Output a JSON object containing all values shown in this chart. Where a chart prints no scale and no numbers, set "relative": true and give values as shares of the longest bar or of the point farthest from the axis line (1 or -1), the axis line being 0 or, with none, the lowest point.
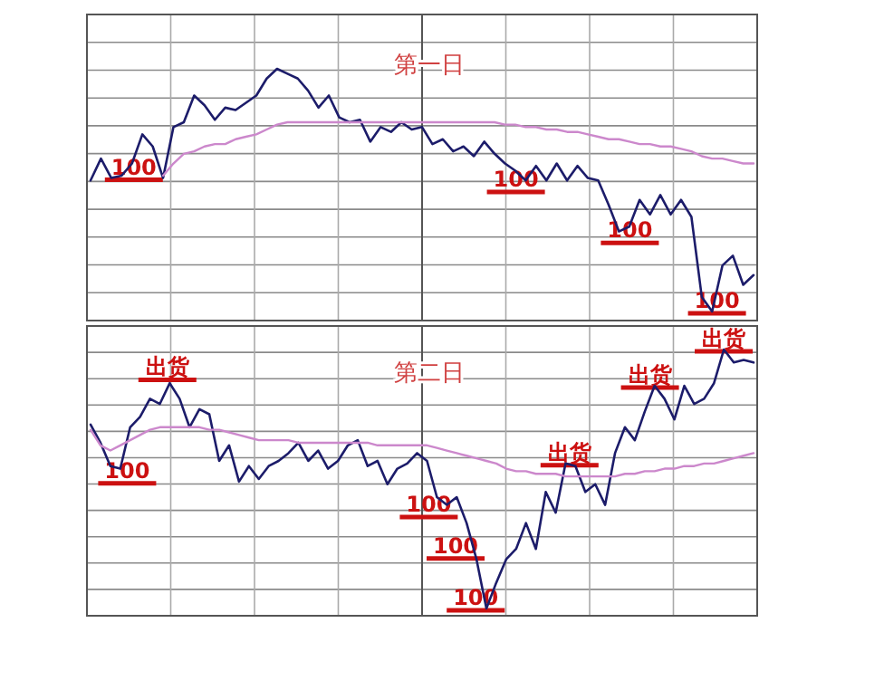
{
  "chart_data": [
    {
      "type": "line",
      "title": "第一日",
      "relative": true,
      "grid": true,
      "categories": [
        null,
        null,
        null,
        null,
        null,
        null,
        null,
        null,
        null,
        null,
        null,
        null,
        null,
        null,
        null,
        null,
        null,
        null,
        null,
        null,
        null,
        null,
        null,
        null,
        null,
        null,
        null,
        null,
        null,
        null,
        null,
        null,
        null,
        null,
        null,
        null,
        null,
        null,
        null,
        null,
        null,
        null,
        null,
        null,
        null,
        null,
        null,
        null,
        null,
        null,
        null,
        null,
        null,
        null,
        null,
        null,
        null,
        null,
        null,
        null,
        null,
        null,
        null,
        null,
        null
      ],
      "series": [
        {
          "color": "#1c1c6a",
          "values": [
            0.54,
            0.63,
            0.55,
            0.56,
            0.61,
            0.73,
            0.68,
            0.55,
            0.76,
            0.78,
            0.89,
            0.85,
            0.79,
            0.84,
            0.83,
            0.86,
            0.89,
            0.96,
            1,
            0.98,
            0.96,
            0.91,
            0.84,
            0.89,
            0.8,
            0.78,
            0.79,
            0.7,
            0.76,
            0.74,
            0.78,
            0.75,
            0.76,
            0.69,
            0.71,
            0.66,
            0.68,
            0.64,
            0.7,
            0.65,
            0.61,
            0.58,
            0.54,
            0.6,
            0.54,
            0.61,
            0.54,
            0.6,
            0.55,
            0.54,
            0.44,
            0.33,
            0.35,
            0.46,
            0.4,
            0.48,
            0.4,
            0.46,
            0.39,
            0.06,
            0,
            0.19,
            0.23,
            0.11,
            0.15
          ]
        },
        {
          "color": "#cc88cc",
          "values": [
            null,
            null,
            null,
            null,
            null,
            null,
            null,
            0.56,
            0.61,
            0.65,
            0.66,
            0.68,
            0.69,
            0.69,
            0.71,
            0.72,
            0.73,
            0.75,
            0.77,
            0.78,
            0.78,
            0.78,
            0.78,
            0.78,
            0.78,
            0.78,
            0.78,
            0.78,
            0.78,
            0.78,
            0.78,
            0.78,
            0.78,
            0.78,
            0.78,
            0.78,
            0.78,
            0.78,
            0.78,
            0.78,
            0.77,
            0.77,
            0.76,
            0.76,
            0.75,
            0.75,
            0.74,
            0.74,
            0.73,
            0.72,
            0.71,
            0.71,
            0.7,
            0.69,
            0.69,
            0.68,
            0.68,
            0.67,
            0.66,
            0.64,
            0.63,
            0.63,
            0.62,
            0.61,
            0.61
          ]
        }
      ],
      "annotations": [
        "100",
        "100",
        "100",
        "100"
      ]
    },
    {
      "type": "line",
      "title": "第二日",
      "relative": true,
      "grid": true,
      "categories": [
        null,
        null,
        null,
        null,
        null,
        null,
        null,
        null,
        null,
        null,
        null,
        null,
        null,
        null,
        null,
        null,
        null,
        null,
        null,
        null,
        null,
        null,
        null,
        null,
        null,
        null,
        null,
        null,
        null,
        null,
        null,
        null,
        null,
        null,
        null,
        null,
        null,
        null,
        null,
        null,
        null,
        null,
        null,
        null,
        null,
        null,
        null,
        null,
        null,
        null,
        null,
        null,
        null,
        null,
        null,
        null,
        null,
        null,
        null,
        null,
        null,
        null,
        null,
        null,
        null,
        null,
        null,
        null
      ],
      "series": [
        {
          "color": "#1c1c6a",
          "values": [
            0.71,
            0.64,
            0.55,
            0.54,
            0.7,
            0.74,
            0.81,
            0.79,
            0.87,
            0.81,
            0.7,
            0.77,
            0.75,
            0.57,
            0.63,
            0.49,
            0.55,
            0.5,
            0.55,
            0.57,
            0.6,
            0.64,
            0.57,
            0.61,
            0.54,
            0.57,
            0.63,
            0.65,
            0.55,
            0.57,
            0.48,
            0.54,
            0.56,
            0.6,
            0.57,
            0.43,
            0.4,
            0.43,
            0.33,
            0.19,
            0,
            0.1,
            0.19,
            0.23,
            0.33,
            0.23,
            0.45,
            0.37,
            0.56,
            0.55,
            0.45,
            0.48,
            0.4,
            0.6,
            0.7,
            0.65,
            0.76,
            0.86,
            0.81,
            0.73,
            0.86,
            0.79,
            0.81,
            0.87,
            1,
            0.95,
            0.96,
            0.95
          ]
        },
        {
          "color": "#cc88cc",
          "values": [
            0.69,
            0.63,
            0.61,
            0.63,
            0.65,
            0.67,
            0.69,
            0.7,
            0.7,
            0.7,
            0.7,
            0.7,
            0.69,
            0.69,
            0.68,
            0.67,
            0.66,
            0.65,
            0.65,
            0.65,
            0.65,
            0.64,
            0.64,
            0.64,
            0.64,
            0.64,
            0.64,
            0.64,
            0.64,
            0.63,
            0.63,
            0.63,
            0.63,
            0.63,
            0.63,
            0.62,
            0.61,
            0.6,
            0.59,
            0.58,
            0.57,
            0.56,
            0.54,
            0.53,
            0.53,
            0.52,
            0.52,
            0.52,
            0.51,
            0.51,
            0.51,
            0.51,
            0.51,
            0.51,
            0.52,
            0.52,
            0.53,
            0.53,
            0.54,
            0.54,
            0.55,
            0.55,
            0.56,
            0.56,
            0.57,
            0.58,
            0.59,
            0.6
          ]
        }
      ],
      "annotations": [
        "出货",
        "100",
        "100",
        "100",
        "100",
        "出货",
        "出货",
        "出货"
      ]
    }
  ]
}
